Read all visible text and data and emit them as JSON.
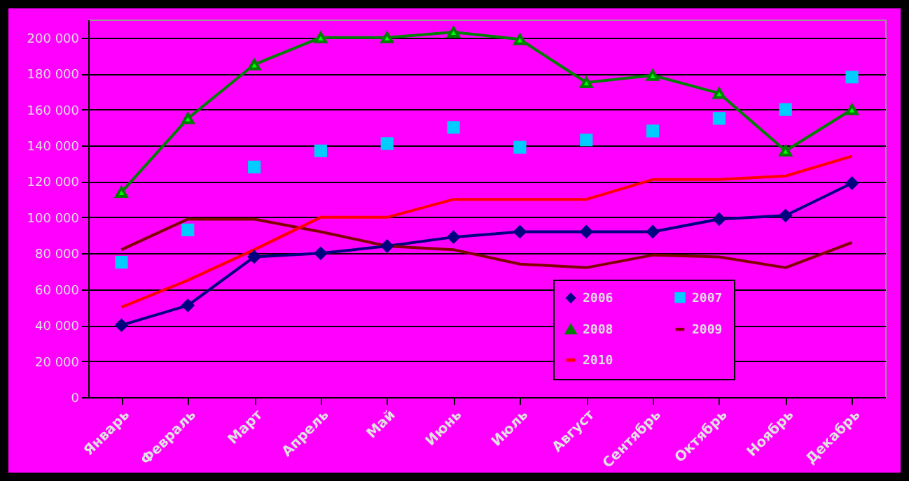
{
  "chart_data": {
    "type": "line",
    "categories": [
      "Январь",
      "Февраль",
      "Март",
      "Апрель",
      "Май",
      "Июнь",
      "Июль",
      "Август",
      "Сентябрь",
      "Октябрь",
      "Ноябрь",
      "Декабрь"
    ],
    "series": [
      {
        "name": "2006",
        "color": "#000080",
        "marker": "diamond",
        "values": [
          40000,
          51000,
          78000,
          80000,
          84000,
          89000,
          92000,
          92000,
          92000,
          99000,
          101000,
          119000
        ]
      },
      {
        "name": "2007",
        "type": "scatter",
        "color": "#00ccff",
        "marker": "square",
        "values": [
          75000,
          93000,
          128000,
          137000,
          141000,
          150000,
          139000,
          143000,
          148000,
          155000,
          160000,
          178000
        ]
      },
      {
        "name": "2008",
        "color": "#008000",
        "marker": "triangle",
        "values": [
          114000,
          155000,
          185000,
          200000,
          200000,
          203000,
          199000,
          175000,
          179000,
          169000,
          137000,
          160000
        ]
      },
      {
        "name": "2009",
        "color": "#800000",
        "marker": "none",
        "values": [
          82000,
          99000,
          99000,
          92000,
          84000,
          82000,
          74000,
          72000,
          79000,
          78000,
          72000,
          86000
        ]
      },
      {
        "name": "2010",
        "color": "#ff0000",
        "marker": "none",
        "values": [
          50000,
          65000,
          82000,
          100000,
          100000,
          110000,
          110000,
          110000,
          121000,
          121000,
          123000,
          134000
        ]
      }
    ],
    "ylim": [
      0,
      210000
    ],
    "yticks": [
      0,
      {
        "value": 20000,
        "label": "20 000"
      },
      {
        "value": 40000,
        "label": "40 000"
      },
      {
        "value": 60000,
        "label": "60 000"
      },
      {
        "value": 80000,
        "label": "80 000"
      },
      {
        "value": 100000,
        "label": "100 000"
      },
      {
        "value": 120000,
        "label": "120 000"
      },
      {
        "value": 140000,
        "label": "140 000"
      },
      {
        "value": 160000,
        "label": "160 000"
      },
      {
        "value": 180000,
        "label": "180 000"
      },
      {
        "value": 200000,
        "label": "200 000"
      }
    ],
    "grid": "y",
    "legend": "bottom right"
  }
}
